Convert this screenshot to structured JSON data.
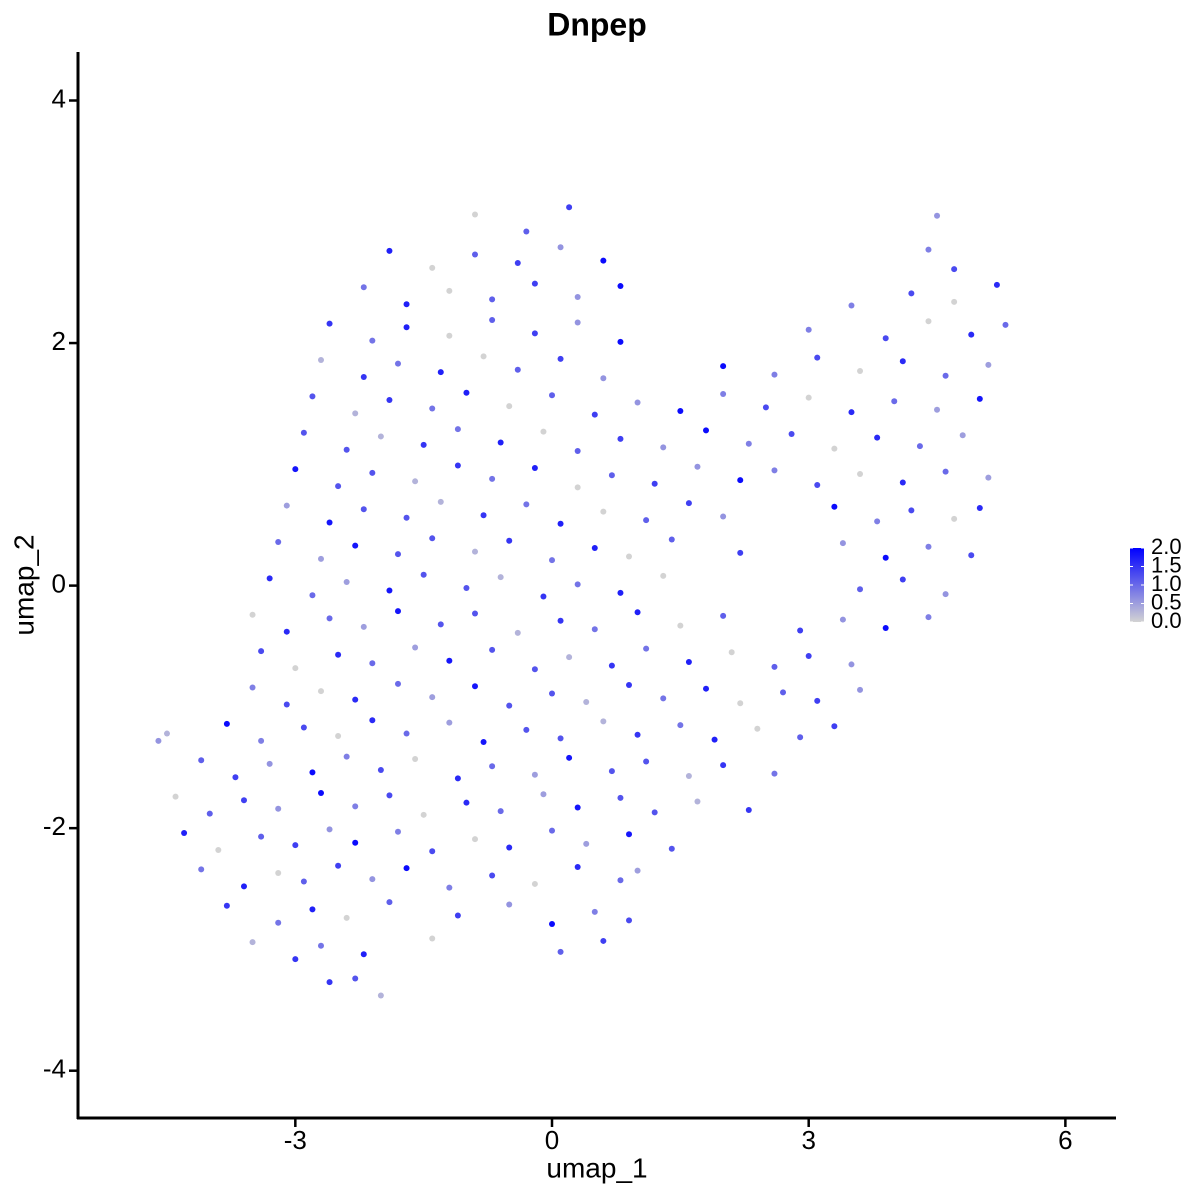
{
  "chart_data": {
    "type": "scatter",
    "title": "Dnpep",
    "x_label": "umap_1",
    "y_label": "umap_2",
    "xlim": [
      -5.54,
      6.58
    ],
    "ylim": [
      -4.39,
      4.4
    ],
    "xticks": [
      -3,
      0,
      3,
      6
    ],
    "yticks": [
      -4,
      -2,
      0,
      2,
      4
    ],
    "color_low": "#d3d3d3",
    "color_high": "#0000ff",
    "color_lim": [
      0,
      2
    ],
    "color_ticks": [
      {
        "value": 2,
        "label": "2.0"
      },
      {
        "value": 1.5,
        "label": "1.5"
      },
      {
        "value": 1,
        "label": "1.0"
      },
      {
        "value": 0.5,
        "label": "0.5"
      },
      {
        "value": 0,
        "label": "0.0"
      }
    ],
    "x": [
      -2.3,
      -2.0,
      -2.6,
      -3.5,
      -3.0,
      -2.7,
      -2.2,
      -1.4,
      0.1,
      0.6,
      -3.8,
      -3.2,
      -2.8,
      -2.4,
      -1.9,
      -1.1,
      -0.5,
      0.0,
      0.5,
      0.9,
      -4.1,
      -3.6,
      -3.2,
      -2.9,
      -2.5,
      -2.1,
      -1.7,
      -1.2,
      -0.7,
      -0.2,
      0.3,
      0.8,
      1.0,
      -4.3,
      -3.9,
      -3.4,
      -3.0,
      -2.6,
      -2.3,
      -1.8,
      -1.4,
      -0.9,
      -0.5,
      0.0,
      0.4,
      0.9,
      1.4,
      -4.4,
      -4.0,
      -3.6,
      -3.2,
      -2.7,
      -2.3,
      -1.9,
      -1.5,
      -1.0,
      -0.6,
      -0.1,
      0.3,
      0.8,
      1.2,
      1.7,
      2.3,
      -4.1,
      -3.7,
      -3.3,
      -2.8,
      -2.4,
      -2.0,
      -1.6,
      -1.1,
      -0.7,
      -0.2,
      0.2,
      0.7,
      1.1,
      1.6,
      2.0,
      2.6,
      -4.6,
      -4.5,
      -3.8,
      -3.4,
      -2.9,
      -2.5,
      -2.1,
      -1.7,
      -1.2,
      -0.8,
      -0.3,
      0.1,
      0.6,
      1.0,
      1.5,
      1.9,
      2.4,
      2.9,
      3.3,
      -3.5,
      -3.1,
      -2.7,
      -2.3,
      -1.8,
      -1.4,
      -0.9,
      -0.5,
      0.0,
      0.4,
      0.9,
      1.3,
      1.8,
      2.2,
      2.7,
      3.1,
      3.6,
      -3.4,
      -3.0,
      -2.5,
      -2.1,
      -1.6,
      -1.2,
      -0.7,
      -0.2,
      0.2,
      0.7,
      1.1,
      1.6,
      2.1,
      2.6,
      3.0,
      3.5,
      -3.5,
      -3.1,
      -2.6,
      -2.2,
      -1.8,
      -1.3,
      -0.9,
      -0.4,
      0.1,
      0.5,
      1.0,
      1.5,
      2.0,
      2.9,
      3.4,
      3.9,
      4.4,
      -3.3,
      -2.8,
      -2.4,
      -1.9,
      -1.5,
      -1.0,
      -0.6,
      -0.1,
      0.3,
      0.8,
      1.3,
      3.6,
      4.1,
      4.6,
      -3.2,
      -2.7,
      -2.3,
      -1.8,
      -1.4,
      -0.9,
      -0.5,
      0.0,
      0.5,
      0.9,
      1.4,
      2.2,
      3.4,
      3.9,
      4.4,
      4.9,
      -3.1,
      -2.6,
      -2.2,
      -1.7,
      -1.3,
      -0.8,
      -0.3,
      0.1,
      0.6,
      1.1,
      1.6,
      2.0,
      3.3,
      3.8,
      4.2,
      4.7,
      5.0,
      -3.0,
      -2.5,
      -2.1,
      -1.6,
      -1.1,
      -0.7,
      -0.2,
      0.3,
      0.7,
      1.2,
      1.7,
      2.2,
      2.6,
      3.1,
      3.6,
      4.1,
      4.6,
      5.1,
      -2.9,
      -2.4,
      -2.0,
      -1.5,
      -1.1,
      -0.6,
      -0.1,
      0.3,
      0.8,
      1.3,
      1.8,
      2.3,
      2.8,
      3.3,
      3.8,
      4.3,
      4.8,
      -2.8,
      -2.3,
      -1.9,
      -1.4,
      -1.0,
      -0.5,
      0.0,
      0.5,
      1.0,
      1.5,
      2.0,
      2.5,
      3.0,
      3.5,
      4.0,
      4.5,
      5.0,
      -2.7,
      -2.2,
      -1.8,
      -1.3,
      -0.8,
      -0.4,
      0.1,
      0.6,
      2.0,
      2.6,
      3.1,
      3.6,
      4.1,
      4.6,
      5.1,
      -2.6,
      -2.1,
      -1.7,
      -1.2,
      -0.7,
      -0.2,
      0.3,
      0.8,
      3.0,
      3.9,
      4.4,
      4.9,
      5.3,
      -2.2,
      -1.7,
      -1.2,
      -0.7,
      -0.2,
      0.3,
      0.8,
      3.5,
      4.2,
      4.7,
      5.2,
      -1.9,
      -1.4,
      -0.9,
      -0.4,
      0.1,
      0.6,
      4.4,
      4.7,
      -0.9,
      -0.3,
      0.2,
      4.5
    ],
    "y": [
      -3.24,
      -3.38,
      -3.27,
      -2.94,
      -3.08,
      -2.97,
      -3.04,
      -2.91,
      -3.02,
      -2.93,
      -2.64,
      -2.78,
      -2.67,
      -2.74,
      -2.61,
      -2.72,
      -2.63,
      -2.79,
      -2.69,
      -2.76,
      -2.34,
      -2.48,
      -2.37,
      -2.44,
      -2.31,
      -2.42,
      -2.33,
      -2.49,
      -2.39,
      -2.46,
      -2.32,
      -2.43,
      -2.35,
      -2.04,
      -2.18,
      -2.07,
      -2.14,
      -2.01,
      -2.12,
      -2.03,
      -2.19,
      -2.09,
      -2.16,
      -2.02,
      -2.13,
      -2.05,
      -2.17,
      -1.74,
      -1.88,
      -1.77,
      -1.84,
      -1.71,
      -1.82,
      -1.73,
      -1.89,
      -1.79,
      -1.86,
      -1.72,
      -1.83,
      -1.75,
      -1.87,
      -1.78,
      -1.85,
      -1.44,
      -1.58,
      -1.47,
      -1.54,
      -1.41,
      -1.52,
      -1.43,
      -1.59,
      -1.49,
      -1.56,
      -1.42,
      -1.53,
      -1.45,
      -1.57,
      -1.48,
      -1.55,
      -1.28,
      -1.22,
      -1.14,
      -1.28,
      -1.17,
      -1.24,
      -1.11,
      -1.22,
      -1.13,
      -1.29,
      -1.19,
      -1.26,
      -1.12,
      -1.23,
      -1.15,
      -1.27,
      -1.18,
      -1.25,
      -1.16,
      -0.84,
      -0.98,
      -0.87,
      -0.94,
      -0.81,
      -0.92,
      -0.83,
      -0.99,
      -0.89,
      -0.96,
      -0.82,
      -0.93,
      -0.85,
      -0.97,
      -0.88,
      -0.95,
      -0.86,
      -0.54,
      -0.68,
      -0.57,
      -0.64,
      -0.51,
      -0.62,
      -0.53,
      -0.69,
      -0.59,
      -0.66,
      -0.52,
      -0.63,
      -0.55,
      -0.67,
      -0.58,
      -0.65,
      -0.24,
      -0.38,
      -0.27,
      -0.34,
      -0.21,
      -0.32,
      -0.23,
      -0.39,
      -0.29,
      -0.36,
      -0.22,
      -0.33,
      -0.25,
      -0.37,
      -0.28,
      -0.35,
      -0.26,
      0.06,
      -0.08,
      0.03,
      -0.04,
      0.09,
      -0.02,
      0.07,
      -0.09,
      0.01,
      -0.06,
      0.08,
      -0.03,
      0.05,
      -0.07,
      0.36,
      0.22,
      0.33,
      0.26,
      0.39,
      0.28,
      0.37,
      0.21,
      0.31,
      0.24,
      0.38,
      0.27,
      0.35,
      0.23,
      0.32,
      0.25,
      0.66,
      0.52,
      0.63,
      0.56,
      0.69,
      0.58,
      0.67,
      0.51,
      0.61,
      0.54,
      0.68,
      0.57,
      0.65,
      0.53,
      0.62,
      0.55,
      0.64,
      0.96,
      0.82,
      0.93,
      0.86,
      0.99,
      0.88,
      0.97,
      0.81,
      0.91,
      0.84,
      0.98,
      0.87,
      0.95,
      0.83,
      0.92,
      0.85,
      0.94,
      0.89,
      1.26,
      1.12,
      1.23,
      1.16,
      1.29,
      1.18,
      1.27,
      1.11,
      1.21,
      1.14,
      1.28,
      1.17,
      1.25,
      1.13,
      1.22,
      1.15,
      1.24,
      1.56,
      1.42,
      1.53,
      1.46,
      1.59,
      1.48,
      1.57,
      1.41,
      1.51,
      1.44,
      1.58,
      1.47,
      1.55,
      1.43,
      1.52,
      1.45,
      1.54,
      1.86,
      1.72,
      1.83,
      1.76,
      1.89,
      1.78,
      1.87,
      1.71,
      1.81,
      1.74,
      1.88,
      1.77,
      1.85,
      1.73,
      1.82,
      2.16,
      2.02,
      2.13,
      2.06,
      2.19,
      2.08,
      2.17,
      2.01,
      2.11,
      2.04,
      2.18,
      2.07,
      2.15,
      2.46,
      2.32,
      2.43,
      2.36,
      2.49,
      2.38,
      2.47,
      2.31,
      2.41,
      2.34,
      2.48,
      2.76,
      2.62,
      2.73,
      2.66,
      2.79,
      2.68,
      2.77,
      2.61,
      3.06,
      2.92,
      3.12,
      3.05
    ],
    "values": [
      1.2,
      0.3,
      1.5,
      0.3,
      1.5,
      0.9,
      1.7,
      0,
      1.1,
      1.4,
      1.5,
      0.9,
      1.7,
      0,
      1.1,
      1.4,
      0.6,
      1.9,
      0.8,
      1.3,
      0.9,
      1.7,
      0,
      1.1,
      1.4,
      0.6,
      1.9,
      0.8,
      1.3,
      0,
      1.6,
      1.0,
      0.5,
      1.7,
      0,
      1.1,
      1.4,
      0.6,
      1.9,
      0.8,
      1.3,
      0,
      1.6,
      1.0,
      0.5,
      1.8,
      1.2,
      0,
      1.1,
      1.4,
      0.6,
      1.9,
      0.8,
      1.3,
      0,
      1.6,
      1.0,
      0.5,
      1.8,
      1.2,
      1.2,
      0.3,
      1.5,
      1.1,
      1.4,
      0.6,
      1.9,
      0.8,
      1.3,
      0,
      1.6,
      1.0,
      0.5,
      1.8,
      1.2,
      1.2,
      0.3,
      1.5,
      0.9,
      0.6,
      0.3,
      1.9,
      0.8,
      1.3,
      0,
      1.6,
      1.0,
      0.5,
      1.8,
      1.2,
      1.2,
      0.3,
      1.5,
      0.9,
      1.7,
      0,
      1.1,
      1.4,
      0.8,
      1.3,
      0,
      1.6,
      1.0,
      0.5,
      1.8,
      1.2,
      1.2,
      0.3,
      1.5,
      0.9,
      1.7,
      0,
      1.1,
      1.4,
      0.6,
      1.3,
      0,
      1.6,
      1.0,
      0.5,
      1.8,
      1.2,
      1.2,
      0.3,
      1.5,
      0.9,
      1.7,
      0,
      1.1,
      1.4,
      0.6,
      0,
      1.6,
      1.0,
      0.5,
      1.8,
      1.2,
      1.2,
      0.3,
      1.5,
      0.9,
      1.7,
      0,
      1.1,
      1.4,
      0.6,
      1.9,
      0.8,
      1.6,
      1.0,
      0.5,
      1.8,
      1.2,
      1.2,
      0.3,
      1.5,
      0.9,
      1.7,
      0,
      1.1,
      1.4,
      0.6,
      1.0,
      0.5,
      1.8,
      1.2,
      1.2,
      0.3,
      1.5,
      0.9,
      1.7,
      0,
      1.1,
      1.4,
      0.6,
      1.9,
      0.8,
      1.3,
      0.5,
      1.8,
      1.2,
      1.2,
      0.3,
      1.5,
      0.9,
      1.7,
      0,
      1.1,
      1.4,
      0.6,
      1.9,
      0.8,
      1.3,
      0,
      1.6,
      1.8,
      1.2,
      1.2,
      0.3,
      1.5,
      0.9,
      1.7,
      0,
      1.1,
      1.4,
      0.6,
      1.9,
      0.8,
      1.3,
      0,
      1.6,
      1.0,
      0.5,
      1.2,
      1.2,
      0.3,
      1.5,
      0.9,
      1.7,
      0,
      1.1,
      1.4,
      0.6,
      1.9,
      0.8,
      1.3,
      0,
      1.6,
      1.0,
      0.5,
      1.2,
      0.3,
      1.5,
      0.9,
      1.7,
      0,
      1.1,
      1.4,
      0.6,
      1.9,
      0.8,
      1.3,
      0,
      1.6,
      1.0,
      0.5,
      1.8,
      0.3,
      1.5,
      0.9,
      1.7,
      0,
      1.1,
      1.4,
      0.6,
      1.9,
      0.8,
      1.3,
      0,
      1.6,
      1.0,
      0.5,
      1.5,
      0.9,
      1.7,
      0,
      1.1,
      1.4,
      0.6,
      1.9,
      0.8,
      1.3,
      0,
      1.6,
      1.0,
      0.9,
      1.7,
      0,
      1.1,
      1.4,
      0.6,
      1.9,
      0.8,
      1.3,
      0,
      1.6,
      1.7,
      0,
      1.1,
      1.4,
      0.6,
      1.9,
      0.8,
      1.3,
      0,
      1.1,
      1.4,
      0.6
    ]
  }
}
